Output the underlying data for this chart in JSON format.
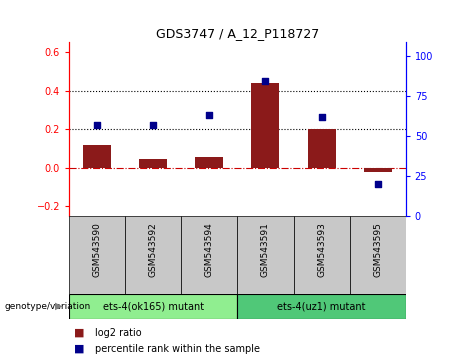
{
  "title": "GDS3747 / A_12_P118727",
  "samples": [
    "GSM543590",
    "GSM543592",
    "GSM543594",
    "GSM543591",
    "GSM543593",
    "GSM543595"
  ],
  "log2_ratio": [
    0.12,
    0.045,
    0.055,
    0.44,
    0.2,
    -0.02
  ],
  "percentile_rank": [
    57,
    57,
    63,
    84,
    62,
    20
  ],
  "groups": [
    {
      "label": "ets-4(ok165) mutant",
      "indices": [
        0,
        1,
        2
      ],
      "color": "#90EE90"
    },
    {
      "label": "ets-4(uz1) mutant",
      "indices": [
        3,
        4,
        5
      ],
      "color": "#50C878"
    }
  ],
  "bar_color": "#8B1A1A",
  "dot_color": "#00008B",
  "ylim_left": [
    -0.25,
    0.65
  ],
  "ylim_right": [
    0,
    108.33
  ],
  "yticks_left": [
    -0.2,
    0.0,
    0.2,
    0.4,
    0.6
  ],
  "yticks_right": [
    0,
    25,
    50,
    75,
    100
  ],
  "hlines": [
    0.2,
    0.4
  ],
  "zero_line_y": 0.0,
  "genotype_label": "genotype/variation",
  "arrow": "▶",
  "legend_log2": "log2 ratio",
  "legend_pct": "percentile rank within the sample",
  "background_color": "#ffffff",
  "plot_bg_color": "#ffffff",
  "sample_box_color": "#C8C8C8",
  "bar_width": 0.5,
  "dot_size": 25
}
